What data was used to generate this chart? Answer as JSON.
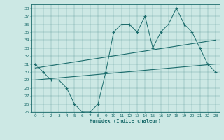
{
  "xlabel": "Humidex (Indice chaleur)",
  "background_color": "#cce8e4",
  "line_color": "#1a6b6b",
  "xlim": [
    -0.5,
    23.5
  ],
  "ylim": [
    25,
    38.5
  ],
  "xticks": [
    0,
    1,
    2,
    3,
    4,
    5,
    6,
    7,
    8,
    9,
    10,
    11,
    12,
    13,
    14,
    15,
    16,
    17,
    18,
    19,
    20,
    21,
    22,
    23
  ],
  "yticks": [
    25,
    26,
    27,
    28,
    29,
    30,
    31,
    32,
    33,
    34,
    35,
    36,
    37,
    38
  ],
  "main_x": [
    0,
    1,
    2,
    3,
    4,
    5,
    6,
    7,
    8,
    9,
    10,
    11,
    12,
    13,
    14,
    15,
    16,
    17,
    18,
    19,
    20,
    21,
    22,
    23
  ],
  "main_y": [
    31,
    30,
    29,
    29,
    28,
    26,
    25,
    25,
    26,
    30,
    35,
    36,
    36,
    35,
    37,
    33,
    35,
    36,
    38,
    36,
    35,
    33,
    31,
    30
  ],
  "trend1_x": [
    0,
    23
  ],
  "trend1_y": [
    30.5,
    34.0
  ],
  "trend2_x": [
    0,
    23
  ],
  "trend2_y": [
    29.0,
    31.0
  ]
}
